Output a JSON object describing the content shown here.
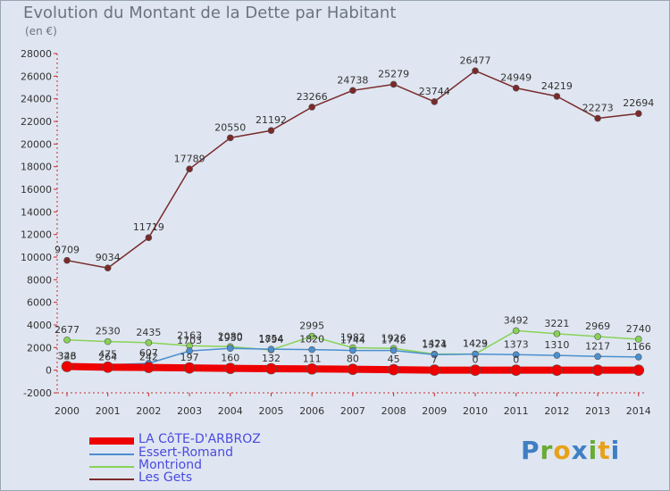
{
  "title": "Evolution du Montant de la Dette par Habitant",
  "subtitle": "(en €)",
  "logo_text": "Proxiti",
  "chart_data": {
    "type": "line",
    "title": "Evolution du Montant de la Dette par Habitant",
    "ylabel": "(en €)",
    "xlabel": "",
    "categories": [
      "2000",
      "2001",
      "2002",
      "2003",
      "2004",
      "2005",
      "2006",
      "2007",
      "2008",
      "2009",
      "2010",
      "2011",
      "2012",
      "2013",
      "2014"
    ],
    "ylim": [
      -2000,
      28000
    ],
    "yticks": [
      -2000,
      0,
      2000,
      4000,
      6000,
      8000,
      10000,
      12000,
      14000,
      16000,
      18000,
      20000,
      22000,
      24000,
      26000,
      28000
    ],
    "ytick_labels": [
      "-2000",
      "0",
      "2000",
      "4000",
      "6000",
      "8000",
      "10000",
      "12000",
      "14000",
      "16000",
      "18000",
      "20000",
      "22000",
      "24000",
      "26000",
      "28000"
    ],
    "series": [
      {
        "name": "LA CôTE-D'ARBROZ",
        "color": "#ee0000",
        "values": [
          326,
          264,
          242,
          197,
          160,
          132,
          111,
          80,
          45,
          7,
          0,
          0,
          0,
          0,
          0
        ],
        "labels": [
          "326",
          "264",
          "242",
          "197",
          "160",
          "132",
          "111",
          "80",
          "45",
          "7",
          "0",
          "0",
          "",
          "",
          ""
        ]
      },
      {
        "name": "Essert-Romand",
        "color": "#4b8fd0",
        "values": [
          343,
          475,
          607,
          1703,
          1930,
          1854,
          1820,
          1744,
          1742,
          1374,
          1423,
          1373,
          1310,
          1217,
          1166
        ],
        "labels": [
          "343",
          "475",
          "607",
          "1703",
          "1930",
          "1854",
          "1820",
          "1744",
          "1742",
          "1374",
          "1423",
          "1373",
          "1310",
          "1217",
          "1166"
        ]
      },
      {
        "name": "Montriond",
        "color": "#88d256",
        "values": [
          2677,
          2530,
          2435,
          2163,
          2080,
          1794,
          2995,
          1982,
          1926,
          1421,
          1429,
          3492,
          3221,
          2969,
          2740
        ],
        "labels": [
          "2677",
          "2530",
          "2435",
          "2163",
          "2080",
          "1794",
          "2995",
          "1982",
          "1926",
          "1421",
          "1429",
          "3492",
          "3221",
          "2969",
          "2740"
        ]
      },
      {
        "name": "Les Gets",
        "color": "#7a2a2a",
        "values": [
          9709,
          9034,
          11719,
          17789,
          20550,
          21192,
          23266,
          24738,
          25279,
          23744,
          26477,
          24949,
          24219,
          22273,
          22694
        ],
        "labels": [
          "9709",
          "9034",
          "11719",
          "17789",
          "20550",
          "21192",
          "23266",
          "24738",
          "25279",
          "23744",
          "26477",
          "24949",
          "24219",
          "22273",
          "22694"
        ]
      }
    ],
    "legend_position": "bottom-left",
    "grid": false
  }
}
